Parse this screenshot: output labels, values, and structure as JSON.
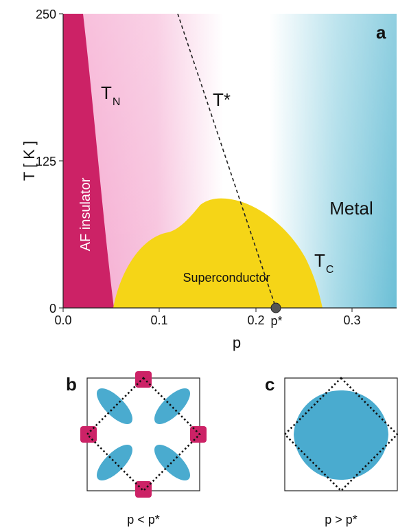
{
  "panel_a": {
    "letter": "a",
    "y_axis_label": "T [ K ]",
    "x_axis_label": "p",
    "y_ticks": [
      "250",
      "125",
      "0"
    ],
    "x_ticks": [
      "0.0",
      "0.1",
      "0.2",
      "0.3"
    ],
    "regions": {
      "af": "AF insulator",
      "sc": "Superconductor",
      "metal": "Metal"
    },
    "lines": {
      "tn_main": "T",
      "tn_sub": "N",
      "tstar": "T*",
      "tc_main": "T",
      "tc_sub": "C"
    },
    "critical_point_label": "p*",
    "colors": {
      "af": "#cc2266",
      "sc": "#f5d517",
      "pseudogap": "#f0a8cf",
      "metal": "#6bbfd6"
    }
  },
  "panel_b": {
    "letter": "b",
    "caption": "p < p*"
  },
  "panel_c": {
    "letter": "c",
    "caption": "p > p*"
  },
  "chart_data": {
    "type": "phase-diagram",
    "xlabel": "p",
    "ylabel": "T [ K ]",
    "xlim": [
      0.0,
      0.35
    ],
    "ylim": [
      0,
      250
    ],
    "critical_doping": 0.22
  }
}
